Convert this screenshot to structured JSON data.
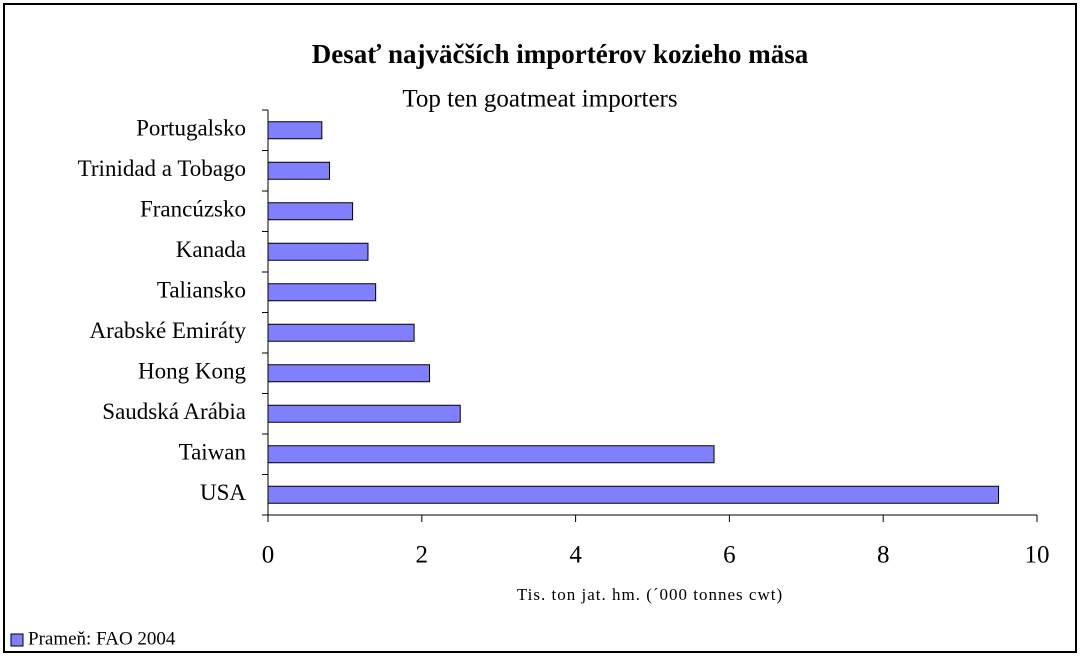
{
  "chart_data": {
    "type": "bar",
    "orientation": "horizontal",
    "title": "Desať najväčších importérov kozieho mäsa",
    "subtitle": "Top ten goatmeat importers",
    "x_label": "Tis. ton jat. hm. (´000 tonnes cwt)",
    "categories": [
      "Portugalsko",
      "Trinidad a Tobago",
      "Francúzsko",
      "Kanada",
      "Taliansko",
      "Arabské Emiráty",
      "Hong Kong",
      "Saudská Arábia",
      "Taiwan",
      "USA"
    ],
    "series": [
      {
        "name": "Prameň: FAO 2004",
        "color": "#8080ff",
        "values": [
          0.7,
          0.8,
          1.1,
          1.3,
          1.4,
          1.9,
          2.1,
          2.5,
          5.8,
          9.5
        ]
      }
    ],
    "xlim": [
      0,
      10
    ],
    "xticks": [
      0,
      2,
      4,
      6,
      8,
      10
    ],
    "grid": false,
    "legend": "bottom-left"
  }
}
